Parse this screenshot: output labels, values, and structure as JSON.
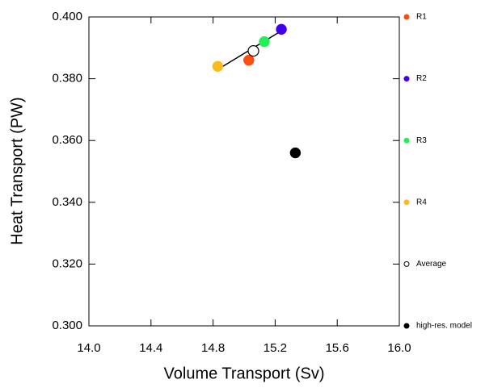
{
  "chart_data": {
    "type": "scatter",
    "xlabel": "Volume Transport (Sv)",
    "ylabel": "Heat Transport (PW)",
    "xlim": [
      14.0,
      16.0
    ],
    "xticks": [
      {
        "value": 14.0,
        "label": "14.0"
      },
      14.4,
      14.8,
      15.2,
      15.6,
      {
        "value": 16.0,
        "label": "16.0"
      }
    ],
    "ylim": [
      0.3,
      0.4
    ],
    "yticks": [
      {
        "value": 0.3,
        "label": "0.300"
      },
      {
        "value": 0.32,
        "label": "0.320"
      },
      {
        "value": 0.34,
        "label": "0.340"
      },
      {
        "value": 0.36,
        "label": "0.360"
      },
      {
        "value": 0.38,
        "label": "0.380"
      },
      {
        "value": 0.4,
        "label": "0.400"
      }
    ],
    "trend_line": {
      "x": [
        14.83,
        15.24
      ],
      "y": [
        0.383,
        0.3955
      ],
      "color": "#000000"
    },
    "series": [
      {
        "name": "R1",
        "color": "#ff4d0d",
        "marker": "filled",
        "x": [
          15.03
        ],
        "y": [
          0.386
        ]
      },
      {
        "name": "R2",
        "color": "#4000ee",
        "marker": "filled",
        "x": [
          15.24
        ],
        "y": [
          0.396
        ]
      },
      {
        "name": "R3",
        "color": "#22ee55",
        "marker": "filled",
        "x": [
          15.13
        ],
        "y": [
          0.392
        ]
      },
      {
        "name": "R4",
        "color": "#fbbb1b",
        "marker": "filled",
        "x": [
          14.83
        ],
        "y": [
          0.384
        ]
      },
      {
        "name": "Average",
        "color": "#000000",
        "marker": "open",
        "x": [
          15.06
        ],
        "y": [
          0.389
        ]
      },
      {
        "name": "high-res. model",
        "color": "#000000",
        "marker": "filled",
        "x": [
          15.33
        ],
        "y": [
          0.356
        ]
      }
    ]
  }
}
